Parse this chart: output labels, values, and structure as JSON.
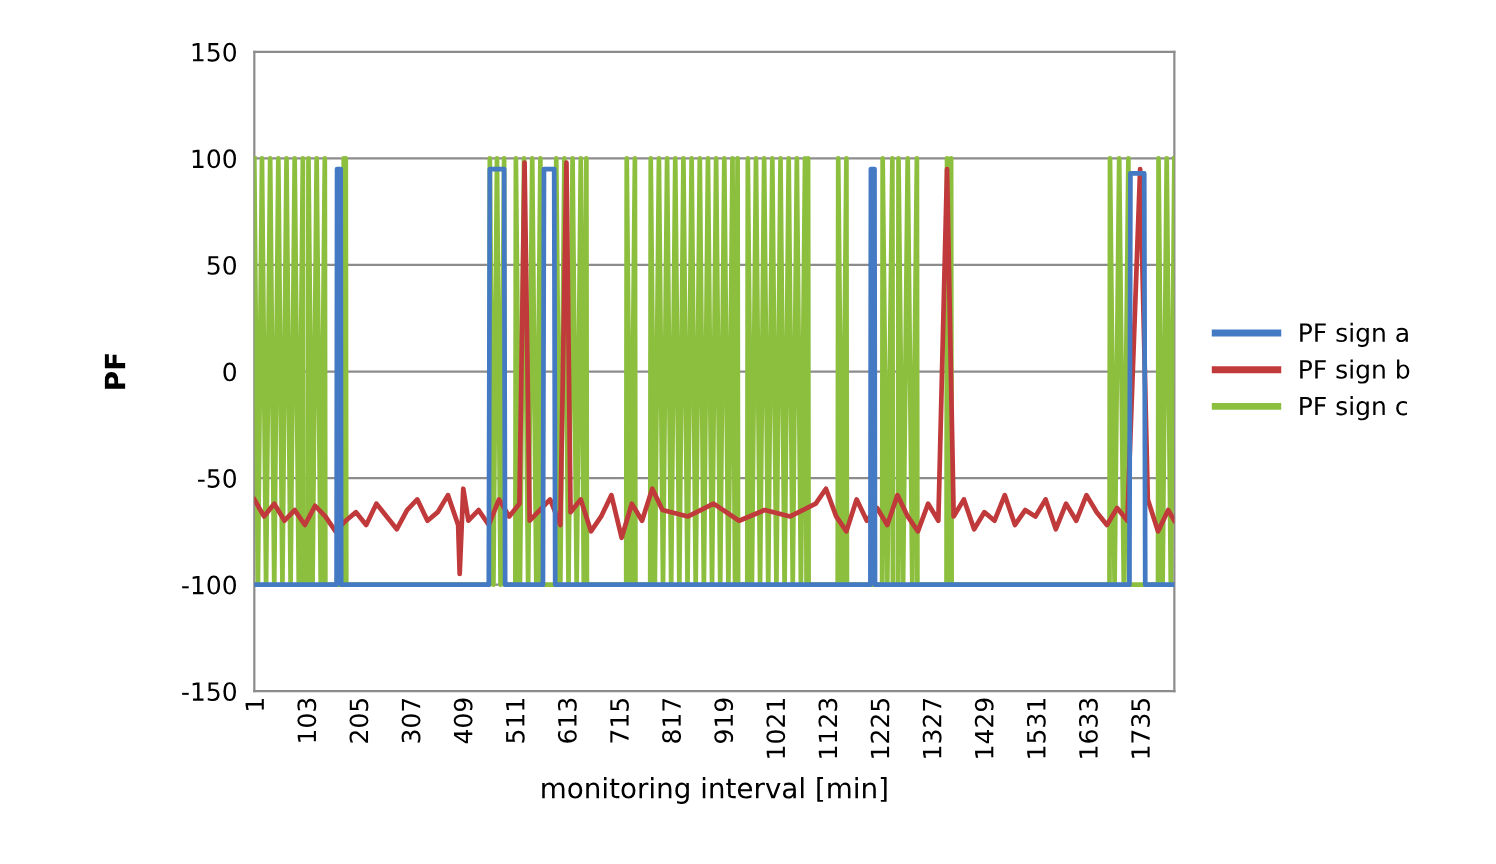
{
  "chart_data": {
    "type": "line",
    "xlabel": "monitoring interval [min]",
    "ylabel": "PF",
    "xlim": [
      1,
      1802
    ],
    "xticks": [
      1,
      103,
      205,
      307,
      409,
      511,
      613,
      715,
      817,
      919,
      1021,
      1123,
      1225,
      1327,
      1429,
      1531,
      1633,
      1735
    ],
    "ylim": [
      -150,
      150
    ],
    "yticks": [
      -150,
      -100,
      -50,
      0,
      50,
      100,
      150
    ],
    "grid": "y",
    "legend": "right",
    "marker": "none",
    "line_style": "solid",
    "series": [
      {
        "name": "PF sign a",
        "color": "#4479c4",
        "x": [
          1,
          162,
          163,
          170,
          171,
          460,
          462,
          490,
          492,
          566,
          568,
          588,
          590,
          1207,
          1208,
          1215,
          1216,
          1714,
          1716,
          1743,
          1745,
          1802
        ],
        "values": [
          -100,
          -100,
          95,
          95,
          -100,
          -100,
          95,
          95,
          -100,
          -100,
          95,
          95,
          -100,
          -100,
          95,
          95,
          -100,
          -100,
          93,
          93,
          -100,
          -100
        ]
      },
      {
        "name": "PF sign b",
        "color": "#c0393b",
        "x": [
          1,
          20,
          40,
          60,
          80,
          100,
          120,
          140,
          160,
          180,
          200,
          220,
          240,
          260,
          280,
          300,
          320,
          340,
          360,
          380,
          400,
          403,
          410,
          420,
          440,
          460,
          480,
          500,
          520,
          530,
          540,
          560,
          580,
          600,
          612,
          620,
          640,
          660,
          680,
          700,
          720,
          740,
          760,
          780,
          800,
          850,
          900,
          950,
          1000,
          1050,
          1100,
          1120,
          1140,
          1160,
          1180,
          1200,
          1220,
          1240,
          1260,
          1280,
          1300,
          1320,
          1340,
          1357,
          1370,
          1390,
          1410,
          1430,
          1450,
          1470,
          1490,
          1510,
          1530,
          1550,
          1570,
          1590,
          1610,
          1630,
          1650,
          1670,
          1690,
          1710,
          1735,
          1750,
          1770,
          1790,
          1802
        ],
        "values": [
          -60,
          -68,
          -62,
          -70,
          -65,
          -72,
          -63,
          -68,
          -75,
          -70,
          -66,
          -72,
          -62,
          -68,
          -74,
          -65,
          -60,
          -70,
          -66,
          -58,
          -72,
          -95,
          -55,
          -70,
          -65,
          -72,
          -60,
          -68,
          -62,
          98,
          -70,
          -65,
          -60,
          -72,
          98,
          -66,
          -60,
          -75,
          -68,
          -58,
          -78,
          -62,
          -70,
          -55,
          -65,
          -68,
          -62,
          -70,
          -65,
          -68,
          -62,
          -55,
          -68,
          -75,
          -60,
          -70,
          -64,
          -72,
          -58,
          -68,
          -75,
          -62,
          -70,
          95,
          -68,
          -60,
          -74,
          -66,
          -70,
          -58,
          -72,
          -65,
          -68,
          -60,
          -74,
          -62,
          -70,
          -58,
          -66,
          -72,
          -64,
          -70,
          95,
          -60,
          -75,
          -65,
          -70
        ]
      },
      {
        "name": "PF sign c",
        "color": "#8dbf3e",
        "x": [
          1,
          8,
          16,
          24,
          32,
          40,
          48,
          56,
          64,
          72,
          80,
          88,
          96,
          97,
          106,
          107,
          115,
          123,
          131,
          139,
          140,
          175,
          176,
          178,
          180,
          181,
          461,
          462,
          469,
          476,
          483,
          490,
          491,
          512,
          513,
          521,
          529,
          537,
          545,
          553,
          561,
          562,
          591,
          592,
          600,
          608,
          616,
          624,
          632,
          640,
          646,
          651,
          652,
          729,
          730,
          738,
          746,
          747,
          776,
          777,
          785,
          793,
          801,
          809,
          817,
          825,
          833,
          841,
          849,
          857,
          865,
          873,
          881,
          889,
          897,
          905,
          913,
          921,
          929,
          937,
          942,
          947,
          948,
          966,
          967,
          975,
          983,
          991,
          999,
          1007,
          1015,
          1023,
          1031,
          1039,
          1047,
          1055,
          1063,
          1071,
          1079,
          1082,
          1085,
          1086,
          1143,
          1144,
          1152,
          1160,
          1161,
          1230,
          1231,
          1240,
          1250,
          1251,
          1261,
          1262,
          1271,
          1280,
          1289,
          1298,
          1299,
          1356,
          1357,
          1361,
          1365,
          1366,
          1675,
          1676,
          1685,
          1694,
          1703,
          1712,
          1713,
          1770,
          1771,
          1779,
          1787,
          1795,
          1802
        ],
        "values": [
          100,
          -100,
          100,
          -100,
          100,
          -100,
          100,
          -100,
          100,
          -100,
          100,
          -100,
          100,
          -100,
          -100,
          100,
          -100,
          100,
          -100,
          100,
          -100,
          -100,
          100,
          -100,
          100,
          -100,
          -100,
          100,
          -100,
          100,
          -100,
          100,
          -100,
          -100,
          100,
          -100,
          100,
          -100,
          100,
          -100,
          100,
          -100,
          -100,
          100,
          -100,
          100,
          -100,
          100,
          -100,
          100,
          -100,
          100,
          -100,
          -100,
          100,
          -100,
          100,
          -100,
          -100,
          100,
          -100,
          100,
          -100,
          100,
          -100,
          100,
          -100,
          100,
          -100,
          100,
          -100,
          100,
          -100,
          100,
          -100,
          100,
          -100,
          100,
          -100,
          100,
          -100,
          100,
          -100,
          -100,
          100,
          -100,
          100,
          -100,
          100,
          -100,
          100,
          -100,
          100,
          -100,
          100,
          -100,
          100,
          -100,
          100,
          -100,
          100,
          -100,
          -100,
          100,
          -100,
          100,
          -100,
          -100,
          100,
          -100,
          100,
          -100,
          -100,
          100,
          -100,
          100,
          -100,
          100,
          -100,
          -100,
          100,
          -100,
          100,
          -100,
          -100,
          100,
          -100,
          100,
          -100,
          100,
          -100,
          -100,
          100,
          -100,
          100,
          -100,
          100
        ]
      }
    ]
  }
}
